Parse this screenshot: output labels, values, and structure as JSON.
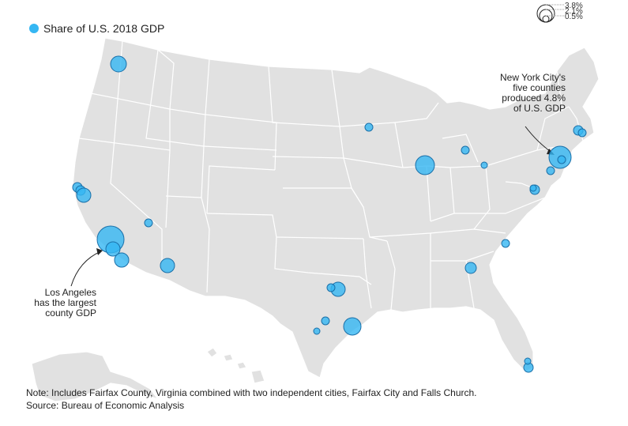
{
  "legend": {
    "label": "Share of U.S. 2018 GDP",
    "color": "#35b7f3"
  },
  "size_legend": {
    "labels": [
      "3.8%",
      "2.1%",
      "0.5%"
    ]
  },
  "annotations": {
    "nyc": [
      "New York City's",
      "five counties",
      "produced 4.8%",
      "of U.S. GDP"
    ],
    "la": [
      "Los Angeles",
      "has the largest",
      "county GDP"
    ]
  },
  "note": "Note: Includes Fairfax County, Virginia combined with two independent cities, Fairfax City and Falls Church.",
  "source": "Source: Bureau of Economic Analysis",
  "colors": {
    "land": "#e1e1e1",
    "bubble": "#35b7f3",
    "bubble_stroke": "#1a6fa8"
  }
}
